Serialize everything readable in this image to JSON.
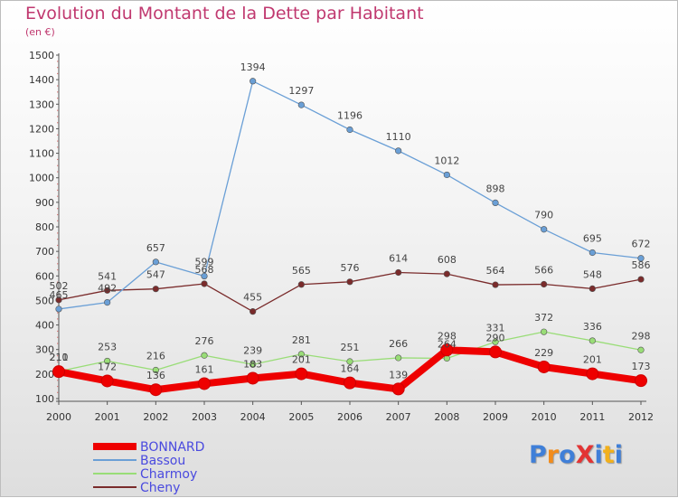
{
  "title": "Evolution du Montant de la Dette par Habitant",
  "subtitle": "(en €)",
  "logo": {
    "text": "ProXiti",
    "colors": [
      "#3f7fd8",
      "#f28c1c",
      "#3f7fd8",
      "#e33434",
      "#3f7fd8",
      "#f2b01c",
      "#3f7fd8"
    ]
  },
  "chart_data": {
    "type": "line",
    "x": [
      "2000",
      "2001",
      "2002",
      "2003",
      "2004",
      "2005",
      "2006",
      "2007",
      "2008",
      "2009",
      "2010",
      "2011",
      "2012"
    ],
    "ylim": [
      100,
      1500
    ],
    "yticks": [
      "100",
      "200",
      "300",
      "400",
      "500",
      "600",
      "700",
      "800",
      "900",
      "1000",
      "1100",
      "1200",
      "1300",
      "1400",
      "1500"
    ],
    "grid": "off",
    "legend_position": "bottom-left",
    "series": [
      {
        "name": "BONNARD",
        "color": "#ee0000",
        "values": [
          210,
          172,
          136,
          161,
          183,
          201,
          164,
          139,
          298,
          290,
          229,
          201,
          173
        ]
      },
      {
        "name": "Bassou",
        "color": "#6a9fd6",
        "values": [
          465,
          492,
          657,
          599,
          1394,
          1297,
          1196,
          1110,
          1012,
          898,
          790,
          695,
          672
        ]
      },
      {
        "name": "Charmoy",
        "color": "#99dd77",
        "values": [
          211,
          253,
          216,
          276,
          239,
          281,
          251,
          266,
          264,
          331,
          372,
          336,
          298
        ]
      },
      {
        "name": "Cheny",
        "color": "#7a2b2b",
        "values": [
          502,
          541,
          547,
          568,
          455,
          565,
          576,
          614,
          608,
          564,
          566,
          548,
          586
        ]
      }
    ]
  }
}
